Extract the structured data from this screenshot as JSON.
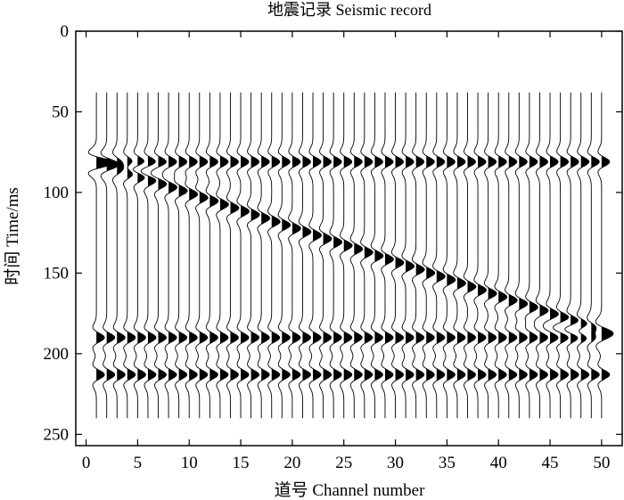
{
  "chart_data": {
    "type": "wiggle-trace",
    "title": "地震记录 Seismic record",
    "xlabel": "道号 Channel number",
    "ylabel": "时间 Time/ms",
    "xlim": [
      -1,
      52
    ],
    "ylim": [
      257,
      0
    ],
    "xticks": [
      0,
      5,
      10,
      15,
      20,
      25,
      30,
      35,
      40,
      45,
      50
    ],
    "yticks": [
      0,
      50,
      100,
      150,
      200,
      250
    ],
    "channels": 50,
    "trace_start_ms": 38,
    "trace_end_ms": 240,
    "events": [
      {
        "kind": "flat",
        "time_ms": 81,
        "polarity": 1
      },
      {
        "kind": "flat",
        "time_ms": 190,
        "polarity": 1
      },
      {
        "kind": "flat",
        "time_ms": 213,
        "polarity": 1
      },
      {
        "kind": "dipping",
        "time_start_ms": 82,
        "time_end_ms": 186,
        "channel_start": 1,
        "channel_end": 50,
        "polarity": 1
      }
    ],
    "grid": false,
    "fill": "positive lobes filled black"
  }
}
